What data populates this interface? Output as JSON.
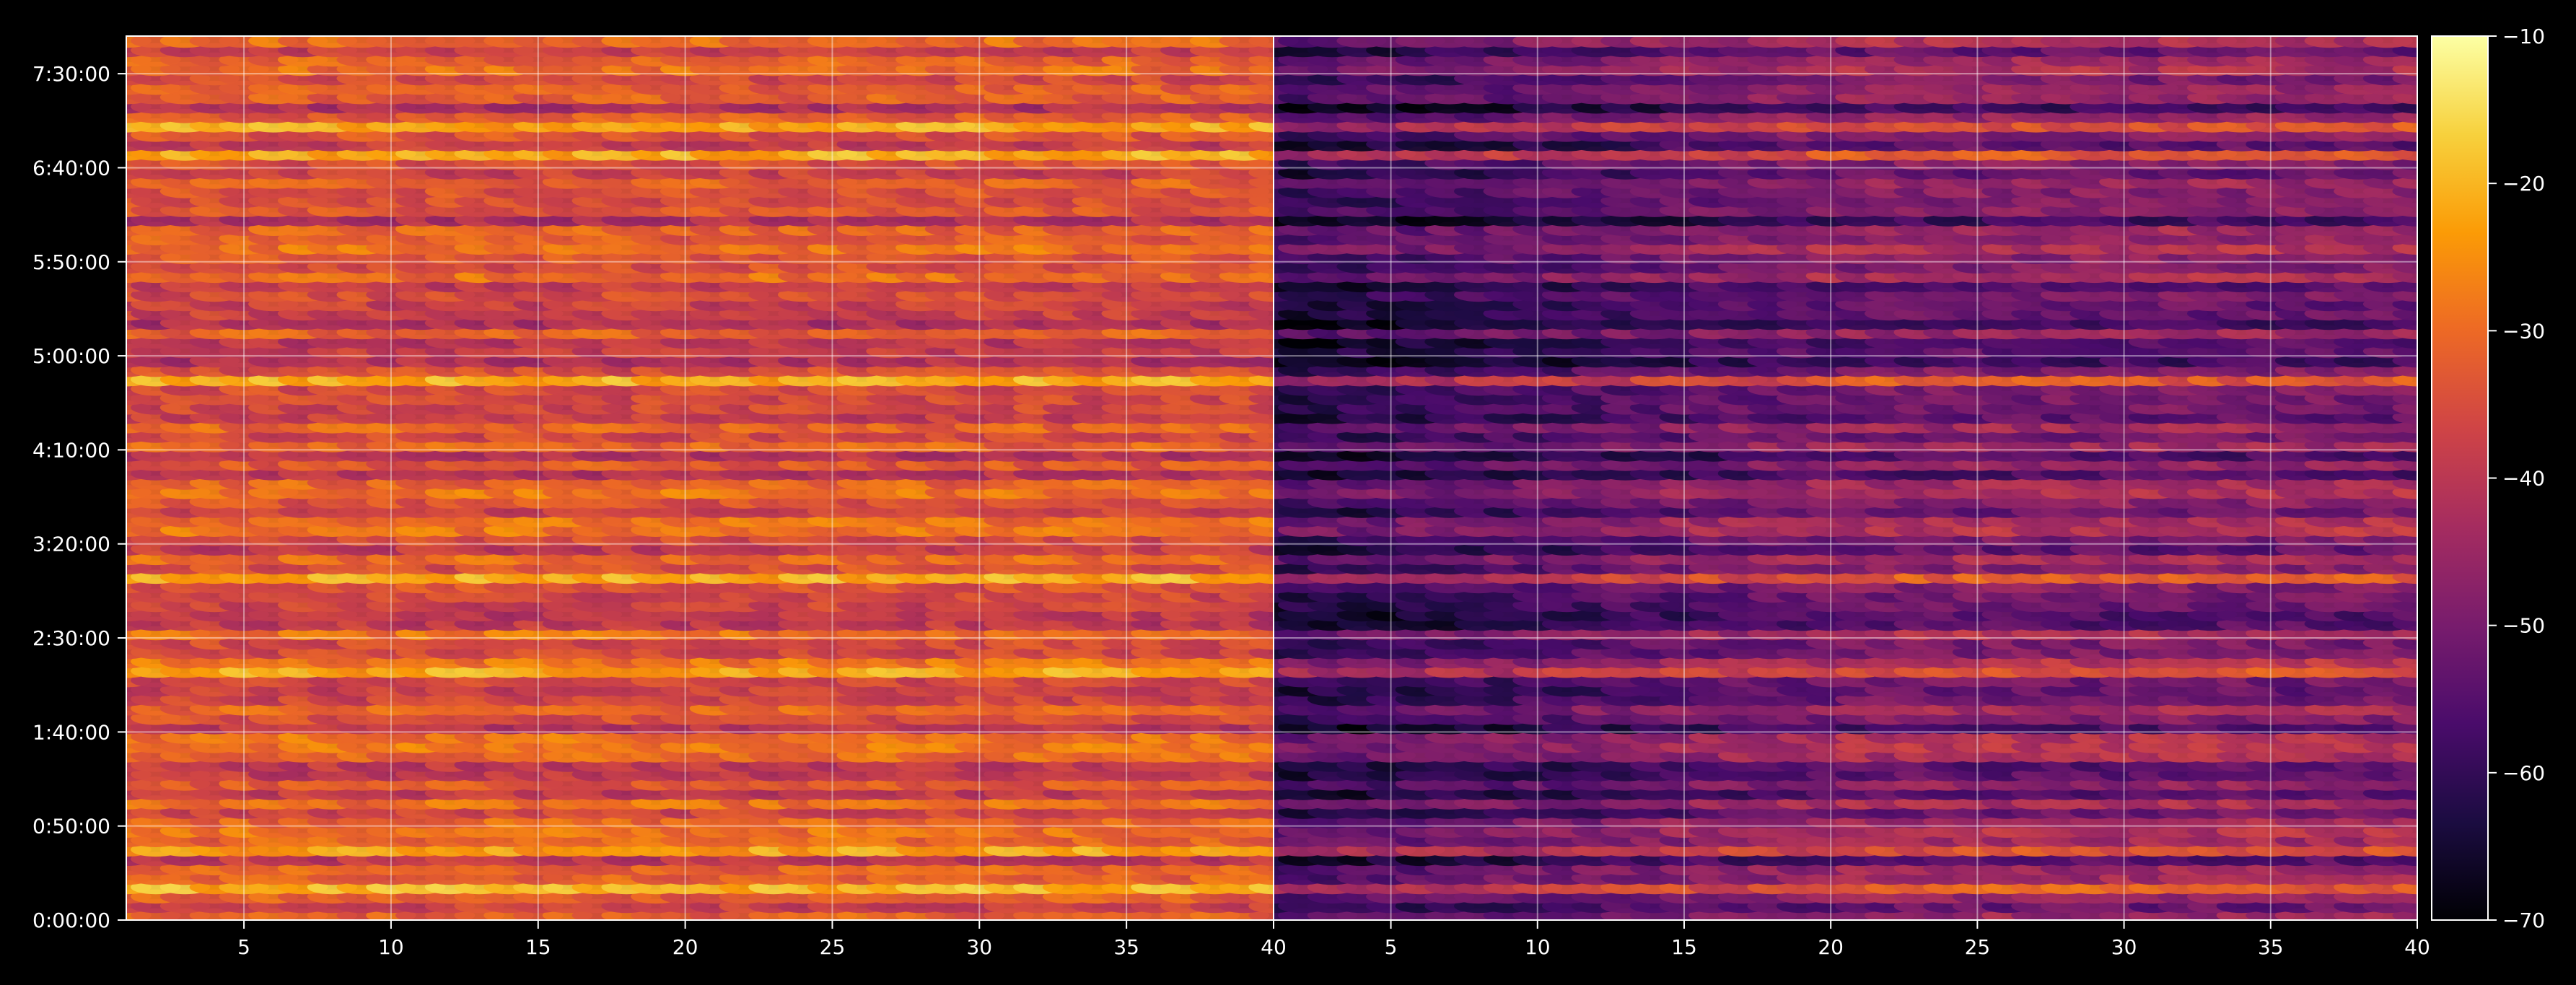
{
  "chart_data": [
    {
      "type": "heatmap",
      "panel": "left",
      "x_ticks": [
        5,
        10,
        15,
        20,
        25,
        30,
        35,
        40
      ],
      "xlim": [
        1,
        40
      ],
      "y_ticks": [
        "0:00:00",
        "0:50:00",
        "1:40:00",
        "2:30:00",
        "3:20:00",
        "4:10:00",
        "5:00:00",
        "5:50:00",
        "6:40:00",
        "7:30:00"
      ],
      "ylim_minutes": [
        0,
        470
      ],
      "grid": true,
      "value_range": [
        -50,
        -20
      ],
      "colormap": "inferno"
    },
    {
      "type": "heatmap",
      "panel": "right",
      "x_ticks": [
        5,
        10,
        15,
        20,
        25,
        30,
        35,
        40
      ],
      "xlim": [
        1,
        40
      ],
      "y_ticks": [],
      "ylim_minutes": [
        0,
        470
      ],
      "grid": true,
      "value_range": [
        -68,
        -30
      ],
      "colormap": "inferno"
    }
  ],
  "colorbar": {
    "ticks": [
      "−10",
      "−20",
      "−30",
      "−40",
      "−50",
      "−60",
      "−70"
    ],
    "range": [
      -70,
      -10
    ],
    "colormap": "inferno",
    "stops": [
      "#000004",
      "#1b0c41",
      "#4a0c6b",
      "#781c6d",
      "#a52c60",
      "#cf4446",
      "#ed6925",
      "#fb9b06",
      "#f7d13d",
      "#fcffa4"
    ]
  },
  "style": {
    "background": "#000000",
    "axis_color": "#ffffff",
    "grid_color": "#ffffff"
  }
}
